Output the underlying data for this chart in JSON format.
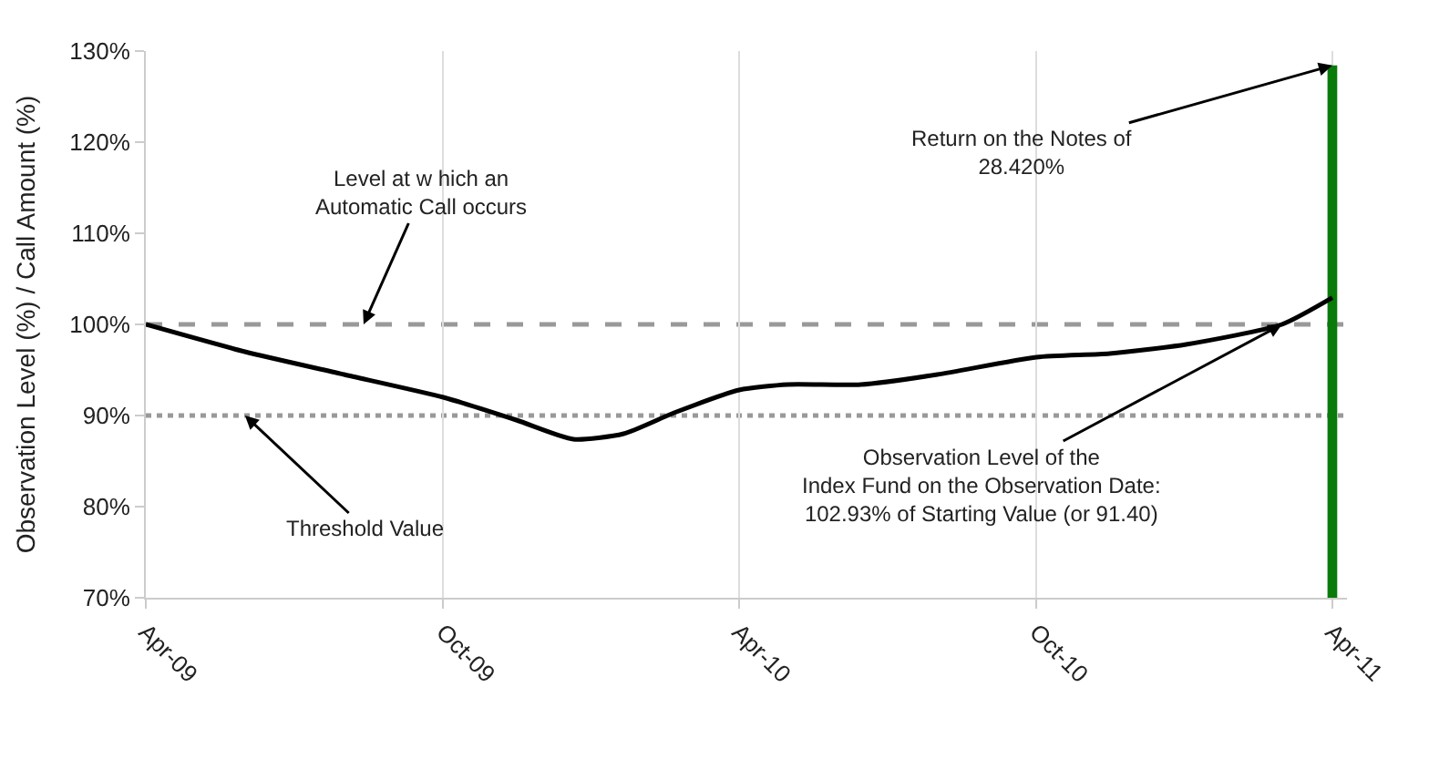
{
  "chart_data": {
    "type": "line",
    "ylabel": "Observation Level (%) / Call Amount (%)",
    "x": [
      "2009-04-01",
      "2009-06-01",
      "2009-08-01",
      "2009-10-01",
      "2009-11-15",
      "2009-12-20",
      "2010-01-20",
      "2010-02-20",
      "2010-04-01",
      "2010-05-01",
      "2010-06-15",
      "2010-08-01",
      "2010-10-01",
      "2010-11-15",
      "2011-01-01",
      "2011-03-01",
      "2011-04-01"
    ],
    "series": [
      {
        "color": "#000000",
        "values": [
          100,
          97,
          94.5,
          92,
          89.5,
          87.4,
          88,
          90.3,
          92.8,
          93.4,
          93.4,
          94.5,
          96.4,
          96.8,
          97.8,
          100,
          102.93
        ]
      },
      {
        "type": "bar",
        "color": "#0a7a0a",
        "x": [
          "2011-04-01"
        ],
        "values": [
          128.42
        ]
      }
    ],
    "ylim": [
      70,
      130
    ],
    "yticks": [
      {
        "value": 70,
        "label": "70%"
      },
      {
        "value": 80,
        "label": "80%"
      },
      {
        "value": 90,
        "label": "90%"
      },
      {
        "value": 100,
        "label": "100%"
      },
      {
        "value": 110,
        "label": "110%"
      },
      {
        "value": 120,
        "label": "120%"
      },
      {
        "value": 130,
        "label": "130%"
      }
    ],
    "xlim": [
      "2009-04-01",
      "2011-04-10"
    ],
    "xticks": [
      {
        "value": "2009-04-01",
        "label": "Apr-09"
      },
      {
        "value": "2009-10-01",
        "label": "Oct-09"
      },
      {
        "value": "2010-04-01",
        "label": "Apr-10"
      },
      {
        "value": "2010-10-01",
        "label": "Oct-10"
      },
      {
        "value": "2011-04-01",
        "label": "Apr-11"
      }
    ],
    "grid": "x",
    "ref_lines": [
      {
        "axis": "y",
        "value": 100,
        "color": "#999999",
        "line_style": "dashed"
      },
      {
        "axis": "y",
        "value": 90,
        "color": "#999999",
        "line_style": "dotted"
      }
    ],
    "annotations": [
      {
        "text": "Level at w hich an\nAutomatic Call occurs",
        "x": "2009-08-13",
        "y": 100
      },
      {
        "text": "Threshold Value",
        "x": "2009-06-01",
        "y": 90
      },
      {
        "text": "Observation Level of the\nIndex Fund on the Observation Date:\n102.93% of Starting Value (or 91.40)",
        "x": "2011-03-01",
        "y": 100
      },
      {
        "text": "Return on the Notes of\n28.420%",
        "x": "2011-04-01",
        "y": 128.42
      }
    ]
  }
}
